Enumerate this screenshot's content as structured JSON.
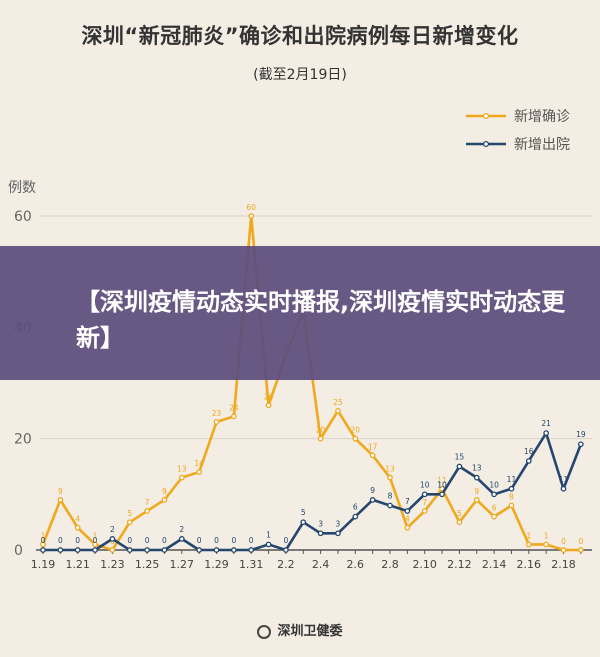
{
  "header": {
    "title": "深圳“新冠肺炎”确诊和出院病例每日新增变化",
    "subtitle": "(截至2月19日)"
  },
  "banner": {
    "text": "【深圳疫情动态实时播报,深圳疫情实时动态更新】"
  },
  "footer": {
    "source": "深圳卫健委"
  },
  "colors": {
    "confirmed": "#f0a81c",
    "discharged": "#24466f",
    "grid": "#d9d3c8",
    "axis": "#555555",
    "background": "#f3ede3",
    "banner": "#5c4c7d"
  },
  "chart_data": {
    "type": "line",
    "title": "深圳“新冠肺炎”确诊和出院病例每日新增变化",
    "subtitle": "(截至2月19日)",
    "xlabel": "",
    "ylabel": "例数",
    "ylim": [
      0,
      60
    ],
    "yticks": [
      "0",
      "20",
      "40",
      "60"
    ],
    "grid": true,
    "legend_position": "top-right",
    "xticks": [
      "1.19",
      "1.21",
      "1.23",
      "1.25",
      "1.27",
      "1.29",
      "1.31",
      "2.2",
      "2.4",
      "2.6",
      "2.8",
      "2.10",
      "2.12",
      "2.14",
      "2.16",
      "2.18"
    ],
    "x": [
      "1.19",
      "1.20",
      "1.21",
      "1.22",
      "1.23",
      "1.24",
      "1.25",
      "1.26",
      "1.27",
      "1.28",
      "1.29",
      "1.30",
      "1.31",
      "2.1",
      "2.2",
      "2.3",
      "2.4",
      "2.5",
      "2.6",
      "2.7",
      "2.8",
      "2.9",
      "2.10",
      "2.11",
      "2.12",
      "2.13",
      "2.14",
      "2.15",
      "2.16",
      "2.17",
      "2.18",
      "2.19"
    ],
    "series": [
      {
        "name": "新增确诊",
        "values": [
          1,
          9,
          4,
          1,
          0,
          5,
          7,
          9,
          13,
          14,
          23,
          24,
          60,
          26,
          35,
          43,
          20,
          25,
          20,
          17,
          13,
          4,
          7,
          11,
          5,
          9,
          6,
          8,
          1,
          1,
          0,
          0
        ]
      },
      {
        "name": "新增出院",
        "values": [
          0,
          0,
          0,
          0,
          2,
          0,
          0,
          0,
          2,
          0,
          0,
          0,
          0,
          1,
          0,
          5,
          3,
          3,
          6,
          9,
          8,
          7,
          10,
          10,
          15,
          13,
          10,
          11,
          16,
          21,
          11,
          19
        ]
      }
    ]
  }
}
